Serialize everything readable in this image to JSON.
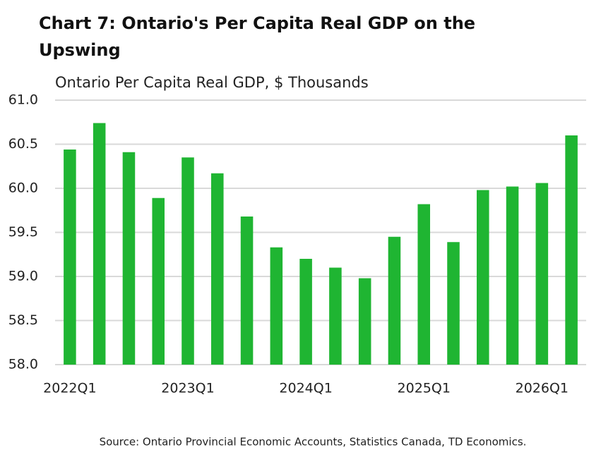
{
  "chart_data": {
    "type": "bar",
    "title": "Chart 7: Ontario's Per Capita Real GDP on the Upswing",
    "subtitle": "Ontario Per Capita Real GDP, $ Thousands",
    "source": "Source: Ontario Provincial Economic Accounts, Statistics Canada, TD Economics.",
    "categories": [
      "2022Q1",
      null,
      null,
      null,
      "2023Q1",
      null,
      null,
      null,
      "2024Q1",
      null,
      null,
      null,
      "2025Q1",
      null,
      null,
      null,
      "2026Q1",
      null
    ],
    "values": [
      60.44,
      60.74,
      60.41,
      59.89,
      60.35,
      60.17,
      59.68,
      59.33,
      59.2,
      59.1,
      58.98,
      59.45,
      59.82,
      59.39,
      59.98,
      60.02,
      60.06,
      60.6
    ],
    "color": "#1fb532",
    "ylim": [
      58.0,
      61.0
    ],
    "yticks": [
      {
        "value": 58.0,
        "label": "58.0"
      },
      {
        "value": 58.5,
        "label": "58.5"
      },
      {
        "value": 59.0,
        "label": "59.0"
      },
      {
        "value": 59.5,
        "label": "59.5"
      },
      {
        "value": 60.0,
        "label": "60.0"
      },
      {
        "value": 60.5,
        "label": "60.5"
      },
      {
        "value": 61.0,
        "label": "61.0"
      }
    ],
    "grid": true
  }
}
